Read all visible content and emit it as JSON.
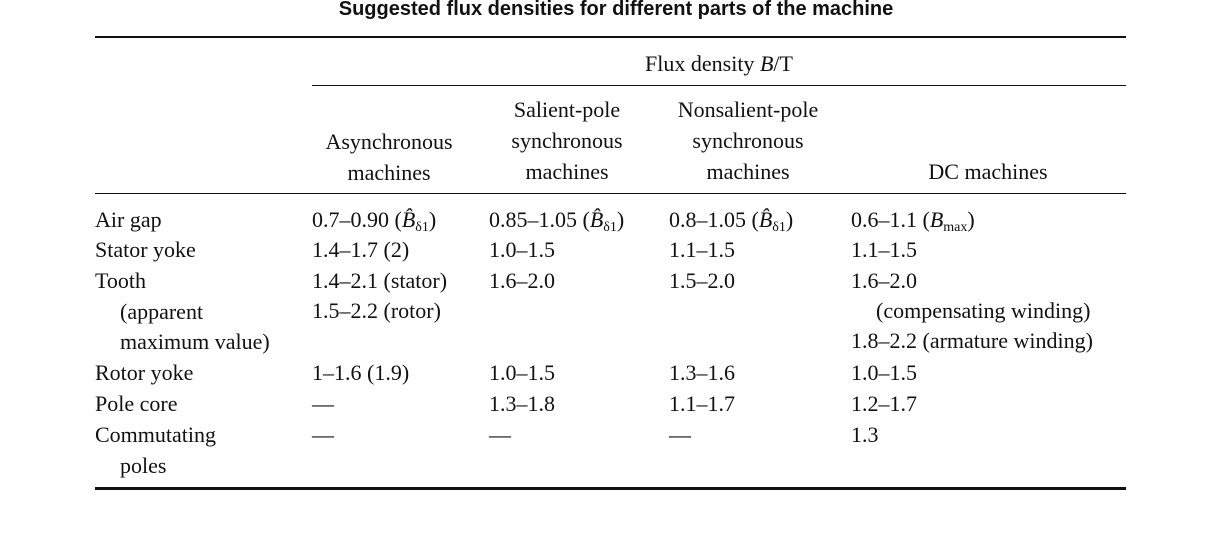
{
  "caption": "Suggested flux densities for different parts of the machine",
  "header": {
    "group_prefix": "Flux density ",
    "group_symbol": "B",
    "group_unit": "/T",
    "columns": [
      [
        "Asynchronous",
        "machines"
      ],
      [
        "Salient-pole",
        "synchronous",
        "machines"
      ],
      [
        "Nonsalient-pole",
        "synchronous",
        "machines"
      ],
      [
        "DC machines"
      ]
    ]
  },
  "rows": [
    {
      "label": [
        "Air gap"
      ],
      "cells": [
        {
          "text": "0.7–0.90 (",
          "sym": "B̂",
          "sub": "δ1",
          "post": ")"
        },
        {
          "text": "0.85–1.05 (",
          "sym": "B̂",
          "sub": "δ1",
          "post": ")"
        },
        {
          "text": "0.8–1.05 (",
          "sym": "B̂",
          "sub": "δ1",
          "post": ")"
        },
        {
          "text": "0.6–1.1 (",
          "sym": "B",
          "sub": "max",
          "post": ")"
        }
      ]
    },
    {
      "label": [
        "Stator yoke"
      ],
      "cells": [
        "1.4–1.7 (2)",
        "1.0–1.5",
        "1.1–1.5",
        "1.1–1.5"
      ]
    },
    {
      "label": [
        "Tooth",
        "(apparent",
        "maximum value)"
      ],
      "cells": [
        [
          "1.4–2.1 (stator)",
          "1.5–2.2 (rotor)"
        ],
        [
          "1.6–2.0"
        ],
        [
          "1.5–2.0"
        ],
        [
          "1.6–2.0",
          "(compensating winding)",
          "1.8–2.2 (armature winding)"
        ]
      ]
    },
    {
      "label": [
        "Rotor yoke"
      ],
      "cells": [
        "1–1.6 (1.9)",
        "1.0–1.5",
        "1.3–1.6",
        "1.0–1.5"
      ]
    },
    {
      "label": [
        "Pole core"
      ],
      "cells": [
        "—",
        "1.3–1.8",
        "1.1–1.7",
        "1.2–1.7"
      ]
    },
    {
      "label": [
        "Commutating",
        "poles"
      ],
      "cells": [
        "—",
        "—",
        "—",
        "1.3"
      ]
    }
  ]
}
